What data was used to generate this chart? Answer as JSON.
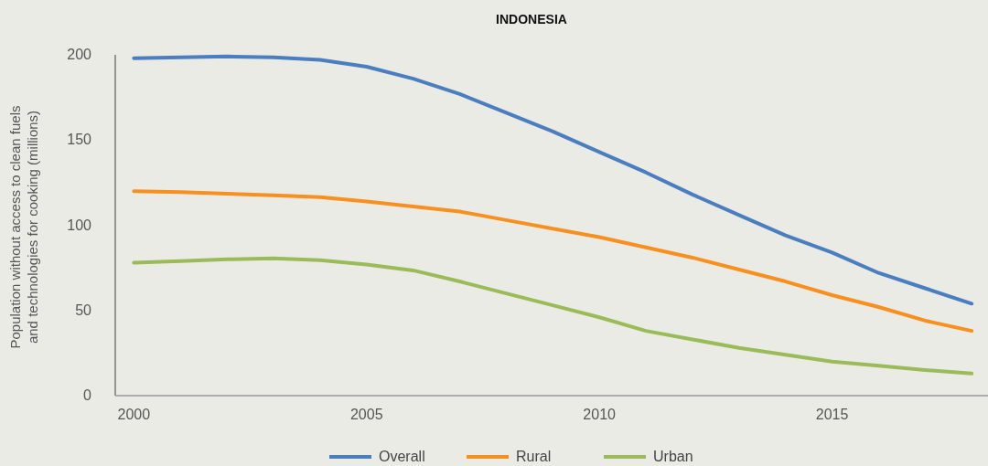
{
  "chart_data": {
    "type": "line",
    "title": "INDONESIA",
    "ylabel": "Population without access to clean fuels and technologies for cooking (millions)",
    "x": [
      2000,
      2001,
      2002,
      2003,
      2004,
      2005,
      2006,
      2007,
      2008,
      2009,
      2010,
      2011,
      2012,
      2013,
      2014,
      2015,
      2016,
      2017,
      2018
    ],
    "xlim": [
      1999.6,
      2018.35
    ],
    "xticks": [
      2000,
      2005,
      2010,
      2015
    ],
    "ylim": [
      0,
      200
    ],
    "yticks": [
      0,
      50,
      100,
      150,
      200
    ],
    "grid": false,
    "legend": "bottom",
    "line_style": "solid",
    "series": [
      {
        "name": "Overall",
        "color": "#4a7ebf",
        "values": [
          198,
          198.5,
          199,
          198.5,
          197,
          193,
          186,
          177,
          166,
          155,
          143,
          131,
          118,
          106,
          94,
          84,
          72,
          63,
          54
        ]
      },
      {
        "name": "Rural",
        "color": "#f7901e",
        "values": [
          120,
          119.5,
          118.5,
          117.5,
          116.5,
          114,
          111,
          108,
          103,
          98,
          93,
          87,
          81,
          74,
          67,
          59,
          52,
          44,
          38
        ]
      },
      {
        "name": "Urban",
        "color": "#9bbb59",
        "values": [
          78,
          79,
          80,
          80.5,
          79.5,
          77,
          73.5,
          67,
          60,
          53,
          46,
          38,
          33,
          28,
          24,
          20,
          17.5,
          15,
          13
        ]
      }
    ]
  }
}
